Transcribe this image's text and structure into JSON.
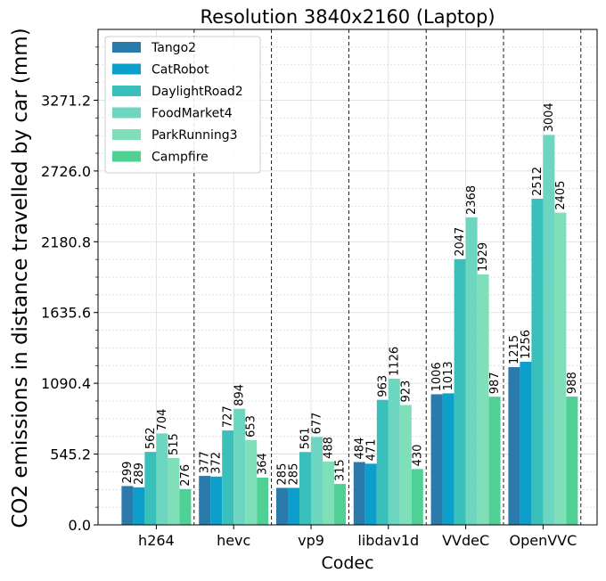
{
  "chart_data": {
    "type": "bar",
    "title": "Resolution 3840x2160 (Laptop)",
    "xlabel": "Codec",
    "ylabel": "CO2 emissions in distance travelled by car (mm)",
    "categories": [
      "h264",
      "hevc",
      "vp9",
      "libdav1d",
      "VVdeC",
      "OpenVVC"
    ],
    "yticks": [
      "0.0",
      "545.2",
      "1090.4",
      "1635.6",
      "2180.8",
      "2726.0",
      "3271.2"
    ],
    "ylim": [
      0,
      3816.4
    ],
    "grid": true,
    "legend_position": "top-left",
    "series": [
      {
        "name": "Tango2",
        "color": "#2a7aab",
        "values": [
          299,
          377,
          285,
          484,
          1006,
          1215
        ]
      },
      {
        "name": "CatRobot",
        "color": "#0d9fcb",
        "values": [
          289,
          372,
          285,
          471,
          1013,
          1256
        ]
      },
      {
        "name": "DaylightRoad2",
        "color": "#39c0bb",
        "values": [
          562,
          727,
          561,
          963,
          2047,
          2512
        ]
      },
      {
        "name": "FoodMarket4",
        "color": "#6dd6c0",
        "values": [
          704,
          894,
          677,
          1126,
          2368,
          3004
        ]
      },
      {
        "name": "ParkRunning3",
        "color": "#7fdfb8",
        "values": [
          515,
          653,
          488,
          923,
          1929,
          2405
        ]
      },
      {
        "name": "Campfire",
        "color": "#4fd195",
        "values": [
          276,
          364,
          315,
          430,
          987,
          988
        ]
      }
    ]
  }
}
